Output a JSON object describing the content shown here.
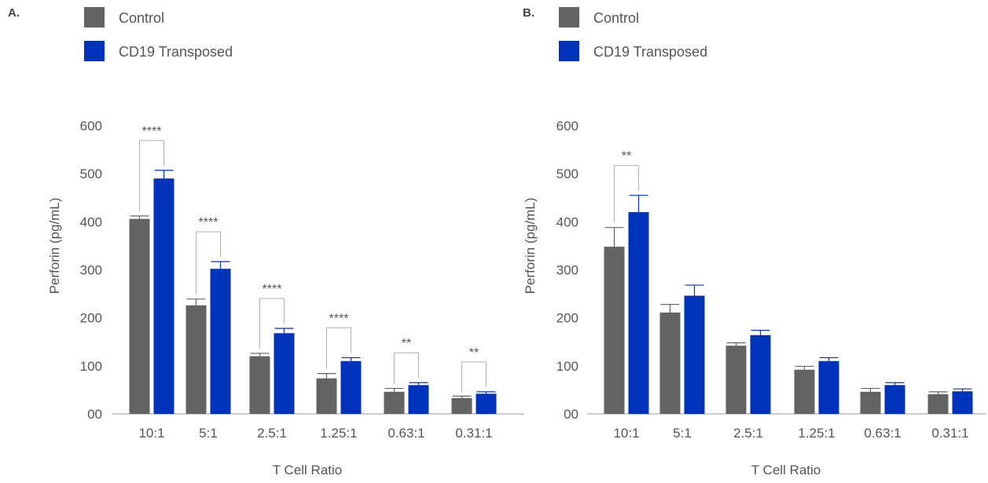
{
  "colors": {
    "control": "#636363",
    "transposed": "#0033bb",
    "axis": "#bbbbbb",
    "bracket": "#b0b0b0",
    "text": "#555555"
  },
  "chart_data": [
    {
      "panel": "A.",
      "type": "bar",
      "categories": [
        "10:1",
        "5:1",
        "2.5:1",
        "1.25:1",
        "0.63:1",
        "0.31:1"
      ],
      "series": [
        {
          "name": "Control",
          "values": [
            406,
            226,
            120,
            74,
            46,
            33
          ],
          "errors": [
            6,
            13,
            6,
            10,
            7,
            4
          ]
        },
        {
          "name": "CD19 Transposed",
          "values": [
            490,
            302,
            168,
            110,
            60,
            42
          ],
          "errors": [
            17,
            15,
            10,
            7,
            5,
            4
          ]
        }
      ],
      "significance": [
        "****",
        "****",
        "****",
        "****",
        "**",
        "**"
      ],
      "xlabel": "T Cell Ratio",
      "ylabel": "Perforin (pg/mL)",
      "ylim": [
        0,
        600
      ],
      "yticks": [
        "00",
        "100",
        "200",
        "300",
        "400",
        "500",
        "600"
      ],
      "legend": "top-left"
    },
    {
      "panel": "B.",
      "type": "bar",
      "categories": [
        "10:1",
        "5:1",
        "2.5:1",
        "1.25:1",
        "0.63:1",
        "0.31:1"
      ],
      "series": [
        {
          "name": "Control",
          "values": [
            348,
            211,
            142,
            92,
            46,
            41
          ],
          "errors": [
            40,
            17,
            6,
            7,
            7,
            5
          ]
        },
        {
          "name": "CD19 Transposed",
          "values": [
            420,
            246,
            164,
            110,
            60,
            47
          ],
          "errors": [
            35,
            22,
            10,
            7,
            5,
            5
          ]
        }
      ],
      "significance": [
        "**",
        "",
        "",
        "",
        "",
        ""
      ],
      "xlabel": "T Cell Ratio",
      "ylabel": "Perforin (pg/mL)",
      "ylim": [
        0,
        600
      ],
      "yticks": [
        "00",
        "100",
        "200",
        "300",
        "400",
        "500",
        "600"
      ],
      "legend": "top-left"
    }
  ]
}
